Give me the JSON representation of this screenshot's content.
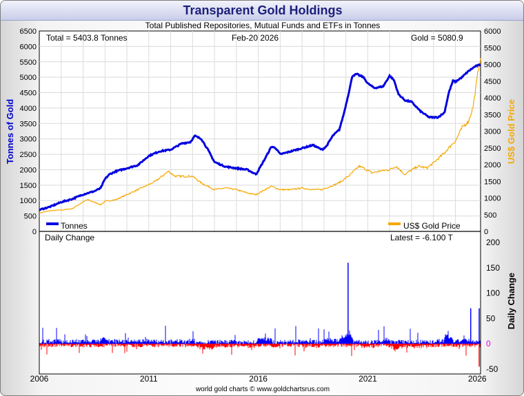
{
  "title": "Transparent Gold Holdings",
  "subtitle": "Total Published Repositories, Mutual Funds and ETFs in Tonnes",
  "info": {
    "total": "Total = 5403.8 Tonnes",
    "date": "Feb-20  2026",
    "gold": "Gold = 5080.9"
  },
  "footer": "world gold charts © www.goldchartsrus.com",
  "colors": {
    "tonnes": "#0000e0",
    "gold": "#f5a800",
    "up": "#0000ff",
    "down": "#ff0000",
    "title": "#1b1f7a"
  },
  "chart_data": [
    {
      "type": "line",
      "title": "Transparent Gold Holdings",
      "xlabel": "",
      "ylabel": "Tonnes of Gold",
      "y2label": "US$ Gold Price",
      "xlim": [
        2006.0,
        2026.15
      ],
      "ylim": [
        0,
        6500
      ],
      "y2lim": [
        0,
        6000
      ],
      "xticks": [
        "2006",
        "2011",
        "2016",
        "2021",
        "2026"
      ],
      "yticks": [
        "0",
        "500",
        "1000",
        "1500",
        "2000",
        "2500",
        "3000",
        "3500",
        "4000",
        "4500",
        "5000",
        "5500",
        "6000",
        "6500"
      ],
      "y2ticks": [
        "0",
        "500",
        "1000",
        "1500",
        "2000",
        "2500",
        "3000",
        "3500",
        "4000",
        "4500",
        "5000",
        "5500",
        "6000"
      ],
      "legend": [
        "Tonnes",
        "US$ Gold Price"
      ],
      "series": [
        {
          "name": "Tonnes",
          "axis": "left",
          "x": [
            2006.0,
            2006.5,
            2007.0,
            2007.5,
            2008.0,
            2008.5,
            2008.8,
            2009.0,
            2009.2,
            2009.5,
            2010.0,
            2010.5,
            2011.0,
            2011.5,
            2012.0,
            2012.5,
            2012.9,
            2013.1,
            2013.4,
            2013.7,
            2014.0,
            2014.5,
            2015.0,
            2015.5,
            2015.9,
            2016.1,
            2016.3,
            2016.6,
            2016.8,
            2017.0,
            2017.5,
            2018.0,
            2018.5,
            2018.9,
            2019.1,
            2019.4,
            2019.7,
            2019.9,
            2020.1,
            2020.3,
            2020.5,
            2020.8,
            2021.0,
            2021.3,
            2021.7,
            2022.0,
            2022.2,
            2022.4,
            2022.7,
            2023.0,
            2023.4,
            2023.8,
            2024.2,
            2024.5,
            2024.7,
            2024.9,
            2025.0,
            2025.3,
            2025.6,
            2025.9,
            2026.1
          ],
          "y": [
            700,
            800,
            950,
            1050,
            1200,
            1300,
            1400,
            1700,
            1850,
            1950,
            2050,
            2150,
            2450,
            2600,
            2650,
            2850,
            2900,
            3100,
            3000,
            2650,
            2250,
            2100,
            2050,
            2000,
            1850,
            2100,
            2350,
            2750,
            2700,
            2500,
            2600,
            2700,
            2800,
            2650,
            2750,
            3100,
            3300,
            3800,
            4400,
            5050,
            5100,
            5000,
            4800,
            4650,
            4700,
            5050,
            4900,
            4450,
            4250,
            4200,
            3900,
            3700,
            3700,
            3850,
            4500,
            4900,
            4850,
            5000,
            5200,
            5350,
            5400
          ]
        },
        {
          "name": "US$ Gold Price",
          "axis": "right",
          "x": [
            2006.0,
            2006.5,
            2007.0,
            2007.5,
            2008.0,
            2008.2,
            2008.8,
            2009.0,
            2009.5,
            2010.0,
            2010.5,
            2011.0,
            2011.3,
            2011.7,
            2011.9,
            2012.2,
            2012.7,
            2013.0,
            2013.4,
            2013.7,
            2014.0,
            2014.5,
            2015.0,
            2015.5,
            2015.9,
            2016.3,
            2016.6,
            2017.0,
            2017.5,
            2018.0,
            2018.5,
            2018.9,
            2019.5,
            2019.8,
            2020.2,
            2020.6,
            2020.8,
            2021.2,
            2021.5,
            2022.0,
            2022.3,
            2022.7,
            2022.9,
            2023.3,
            2023.7,
            2024.0,
            2024.5,
            2024.9,
            2025.0,
            2025.3,
            2025.6,
            2025.8,
            2026.0,
            2026.1
          ],
          "y": [
            550,
            620,
            640,
            680,
            880,
            950,
            800,
            900,
            950,
            1100,
            1250,
            1400,
            1500,
            1700,
            1800,
            1650,
            1650,
            1650,
            1450,
            1350,
            1250,
            1300,
            1250,
            1150,
            1100,
            1250,
            1350,
            1250,
            1250,
            1300,
            1250,
            1250,
            1400,
            1500,
            1700,
            1950,
            1900,
            1750,
            1800,
            1850,
            1950,
            1700,
            1800,
            1950,
            1900,
            2050,
            2350,
            2650,
            2700,
            3100,
            3300,
            3700,
            4600,
            5100
          ]
        }
      ]
    },
    {
      "type": "bar",
      "title": "Daily Change",
      "xlabel": "",
      "ylabel": "Daily Change",
      "ylim": [
        -50,
        200
      ],
      "yticks": [
        "-50",
        "0",
        "50",
        "100",
        "150",
        "200"
      ],
      "latest": "Latest = -6.100 T",
      "notable_changes": [
        {
          "date": 2020.1,
          "value": 160
        },
        {
          "date": 2025.7,
          "value": 70
        },
        {
          "date": 2026.1,
          "value": 70
        },
        {
          "date": 2026.1,
          "value": -45
        }
      ]
    }
  ]
}
